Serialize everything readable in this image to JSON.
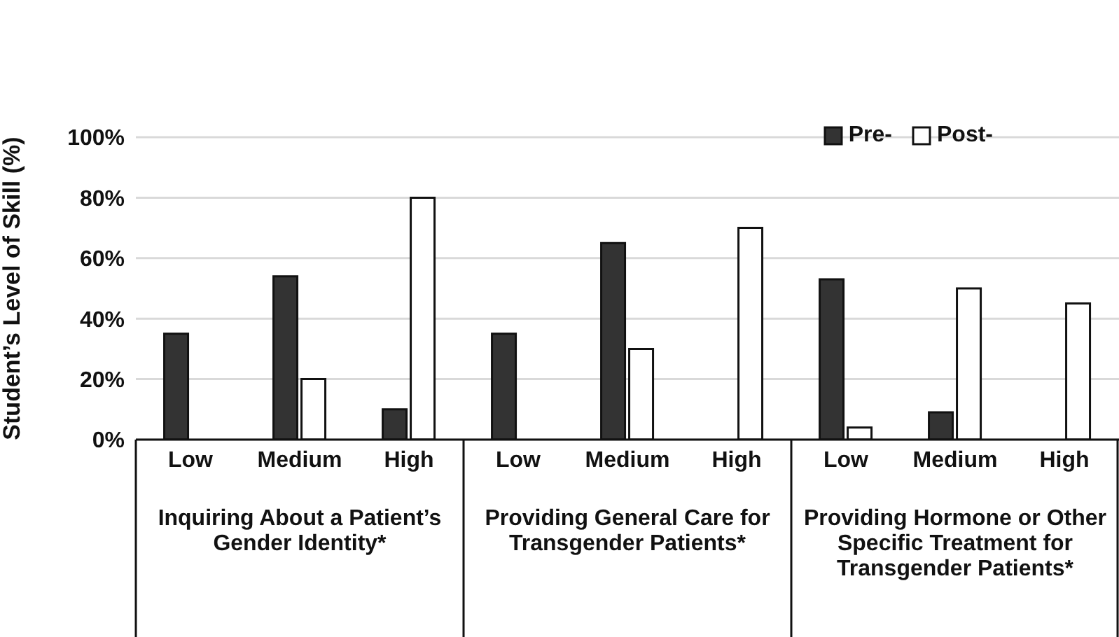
{
  "chart_data": {
    "type": "bar",
    "ylabel": "Student’s Level of Skill (%)",
    "categories": [
      "Low",
      "Medium",
      "High",
      "Low",
      "Medium",
      "High",
      "Low",
      "Medium",
      "High"
    ],
    "series": [
      {
        "name": "Pre-",
        "color": "#333333",
        "values": [
          35,
          54,
          10,
          35,
          65,
          0,
          53,
          9,
          0
        ]
      },
      {
        "name": "Post-",
        "color": "#ffffff",
        "values": [
          0,
          20,
          80,
          0,
          30,
          70,
          4,
          50,
          45
        ]
      }
    ],
    "ylim": [
      0,
      100
    ],
    "yticks": [
      {
        "value": 0,
        "label": "0%"
      },
      {
        "value": 20,
        "label": "20%"
      },
      {
        "value": 40,
        "label": "40%"
      },
      {
        "value": 60,
        "label": "60%"
      },
      {
        "value": 80,
        "label": "80%"
      },
      {
        "value": 100,
        "label": "100%"
      }
    ],
    "annotations": [
      "Inquiring About a Patient’s Gender Identity*",
      "Providing General Care for Transgender Patients*",
      "Providing Hormone or Other Specific Treatment for Transgender Patients*"
    ],
    "grid": "y",
    "legend": "top right"
  }
}
